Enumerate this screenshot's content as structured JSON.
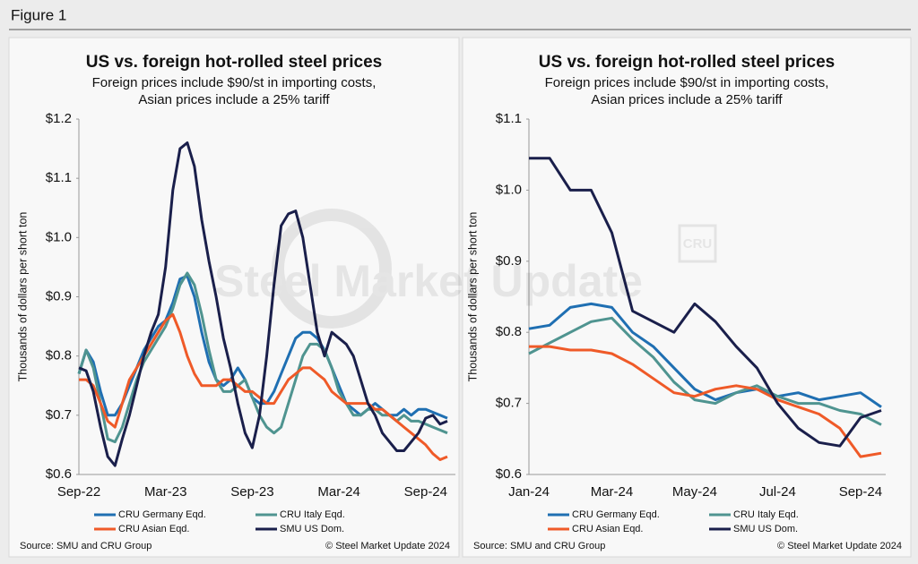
{
  "figure_label": "Figure 1",
  "watermark": "Steel Market Update",
  "watermark_logo": "CRU",
  "chart_data": [
    {
      "type": "line",
      "title": "US vs. foreign hot-rolled steel prices",
      "subtitle": [
        "Foreign prices include $90/st in importing costs,",
        "Asian prices include a 25% tariff"
      ],
      "y_label": "Thousands of dollars per short ton",
      "categories": [
        "Sep-22",
        null,
        null,
        null,
        null,
        null,
        null,
        null,
        null,
        null,
        null,
        null,
        "Mar-23",
        null,
        null,
        null,
        null,
        null,
        null,
        null,
        null,
        null,
        null,
        null,
        "Sep-23",
        null,
        null,
        null,
        null,
        null,
        null,
        null,
        null,
        null,
        null,
        null,
        "Mar-24",
        null,
        null,
        null,
        null,
        null,
        null,
        null,
        null,
        null,
        null,
        null,
        "Sep-24",
        null,
        null,
        null
      ],
      "ylim": [
        0.6,
        1.2
      ],
      "yticks": [
        {
          "value": 0.6,
          "label": "$0.6"
        },
        {
          "value": 0.7,
          "label": "$0.7"
        },
        {
          "value": 0.8,
          "label": "$0.8"
        },
        {
          "value": 0.9,
          "label": "$0.9"
        },
        {
          "value": 1.0,
          "label": "$1.0"
        },
        {
          "value": 1.1,
          "label": "$1.1"
        },
        {
          "value": 1.2,
          "label": "$1.2"
        }
      ],
      "series": [
        {
          "name": "CRU Germany Eqd.",
          "color": "#1f6fb2",
          "values": [
            0.77,
            0.81,
            0.79,
            0.74,
            0.7,
            0.7,
            0.72,
            0.75,
            0.78,
            0.81,
            0.83,
            0.85,
            0.86,
            0.89,
            0.93,
            0.935,
            0.9,
            0.84,
            0.79,
            0.76,
            0.75,
            0.76,
            0.78,
            0.76,
            0.73,
            0.72,
            0.72,
            0.74,
            0.77,
            0.8,
            0.83,
            0.84,
            0.84,
            0.83,
            0.81,
            0.78,
            0.75,
            0.72,
            0.71,
            0.7,
            0.71,
            0.72,
            0.71,
            0.7,
            0.7,
            0.71,
            0.7,
            0.71,
            0.71,
            0.705,
            0.7,
            0.695
          ]
        },
        {
          "name": "CRU Italy Eqd.",
          "color": "#4f9490",
          "values": [
            0.77,
            0.81,
            0.78,
            0.72,
            0.66,
            0.655,
            0.68,
            0.72,
            0.76,
            0.79,
            0.81,
            0.83,
            0.85,
            0.88,
            0.92,
            0.94,
            0.92,
            0.87,
            0.81,
            0.76,
            0.74,
            0.74,
            0.75,
            0.76,
            0.73,
            0.7,
            0.68,
            0.67,
            0.68,
            0.72,
            0.76,
            0.8,
            0.82,
            0.82,
            0.81,
            0.78,
            0.74,
            0.72,
            0.7,
            0.7,
            0.71,
            0.71,
            0.7,
            0.7,
            0.69,
            0.7,
            0.69,
            0.69,
            0.685,
            0.68,
            0.675,
            0.67
          ]
        },
        {
          "name": "CRU Asian Eqd.",
          "color": "#ef5a28",
          "values": [
            0.76,
            0.76,
            0.75,
            0.72,
            0.69,
            0.68,
            0.72,
            0.76,
            0.78,
            0.8,
            0.82,
            0.84,
            0.86,
            0.87,
            0.84,
            0.8,
            0.77,
            0.75,
            0.75,
            0.75,
            0.76,
            0.76,
            0.75,
            0.74,
            0.74,
            0.73,
            0.72,
            0.72,
            0.74,
            0.76,
            0.77,
            0.78,
            0.78,
            0.77,
            0.76,
            0.74,
            0.73,
            0.72,
            0.72,
            0.72,
            0.72,
            0.71,
            0.71,
            0.7,
            0.69,
            0.68,
            0.67,
            0.66,
            0.65,
            0.635,
            0.625,
            0.63
          ]
        },
        {
          "name": "SMU US Dom.",
          "color": "#1a1f4b",
          "values": [
            0.78,
            0.775,
            0.74,
            0.68,
            0.63,
            0.615,
            0.66,
            0.7,
            0.75,
            0.8,
            0.84,
            0.87,
            0.95,
            1.08,
            1.15,
            1.16,
            1.12,
            1.03,
            0.96,
            0.9,
            0.83,
            0.78,
            0.72,
            0.67,
            0.645,
            0.7,
            0.8,
            0.92,
            1.02,
            1.04,
            1.045,
            1.0,
            0.92,
            0.84,
            0.8,
            0.84,
            0.83,
            0.82,
            0.8,
            0.76,
            0.72,
            0.7,
            0.67,
            0.655,
            0.64,
            0.64,
            0.655,
            0.67,
            0.695,
            0.7,
            0.685,
            0.69
          ]
        }
      ],
      "source": "Source: SMU and CRU Group",
      "copyright": "© Steel Market Update 2024"
    },
    {
      "type": "line",
      "title": "US vs. foreign hot-rolled steel prices",
      "subtitle": [
        "Foreign prices include $90/st in importing costs,",
        "Asian prices include a 25% tariff"
      ],
      "y_label": "Thousands of dollars per short ton",
      "categories": [
        "Jan-24",
        null,
        null,
        null,
        "Mar-24",
        null,
        null,
        null,
        "May-24",
        null,
        null,
        null,
        "Jul-24",
        null,
        null,
        null,
        "Sep-24",
        null
      ],
      "ylim": [
        0.6,
        1.1
      ],
      "yticks": [
        {
          "value": 0.6,
          "label": "$0.6"
        },
        {
          "value": 0.7,
          "label": "$0.7"
        },
        {
          "value": 0.8,
          "label": "$0.8"
        },
        {
          "value": 0.9,
          "label": "$0.9"
        },
        {
          "value": 1.0,
          "label": "$1.0"
        },
        {
          "value": 1.1,
          "label": "$1.1"
        }
      ],
      "series": [
        {
          "name": "CRU Germany Eqd.",
          "color": "#1f6fb2",
          "values": [
            0.805,
            0.81,
            0.835,
            0.84,
            0.835,
            0.8,
            0.78,
            0.75,
            0.72,
            0.705,
            0.715,
            0.72,
            0.71,
            0.715,
            0.705,
            0.71,
            0.715,
            0.695
          ]
        },
        {
          "name": "CRU Italy Eqd.",
          "color": "#4f9490",
          "values": [
            0.77,
            0.785,
            0.8,
            0.815,
            0.82,
            0.79,
            0.765,
            0.73,
            0.705,
            0.7,
            0.715,
            0.725,
            0.71,
            0.7,
            0.7,
            0.69,
            0.685,
            0.67
          ]
        },
        {
          "name": "CRU Asian Eqd.",
          "color": "#ef5a28",
          "values": [
            0.78,
            0.78,
            0.775,
            0.775,
            0.77,
            0.755,
            0.735,
            0.715,
            0.71,
            0.72,
            0.725,
            0.72,
            0.705,
            0.695,
            0.685,
            0.665,
            0.625,
            0.63
          ]
        },
        {
          "name": "SMU US Dom.",
          "color": "#1a1f4b",
          "values": [
            1.045,
            1.045,
            1.0,
            1.0,
            0.94,
            0.83,
            0.815,
            0.8,
            0.84,
            0.815,
            0.78,
            0.75,
            0.7,
            0.665,
            0.645,
            0.64,
            0.68,
            0.69
          ]
        }
      ],
      "source": "Source: SMU and CRU Group",
      "copyright": "© Steel Market Update 2024"
    }
  ]
}
